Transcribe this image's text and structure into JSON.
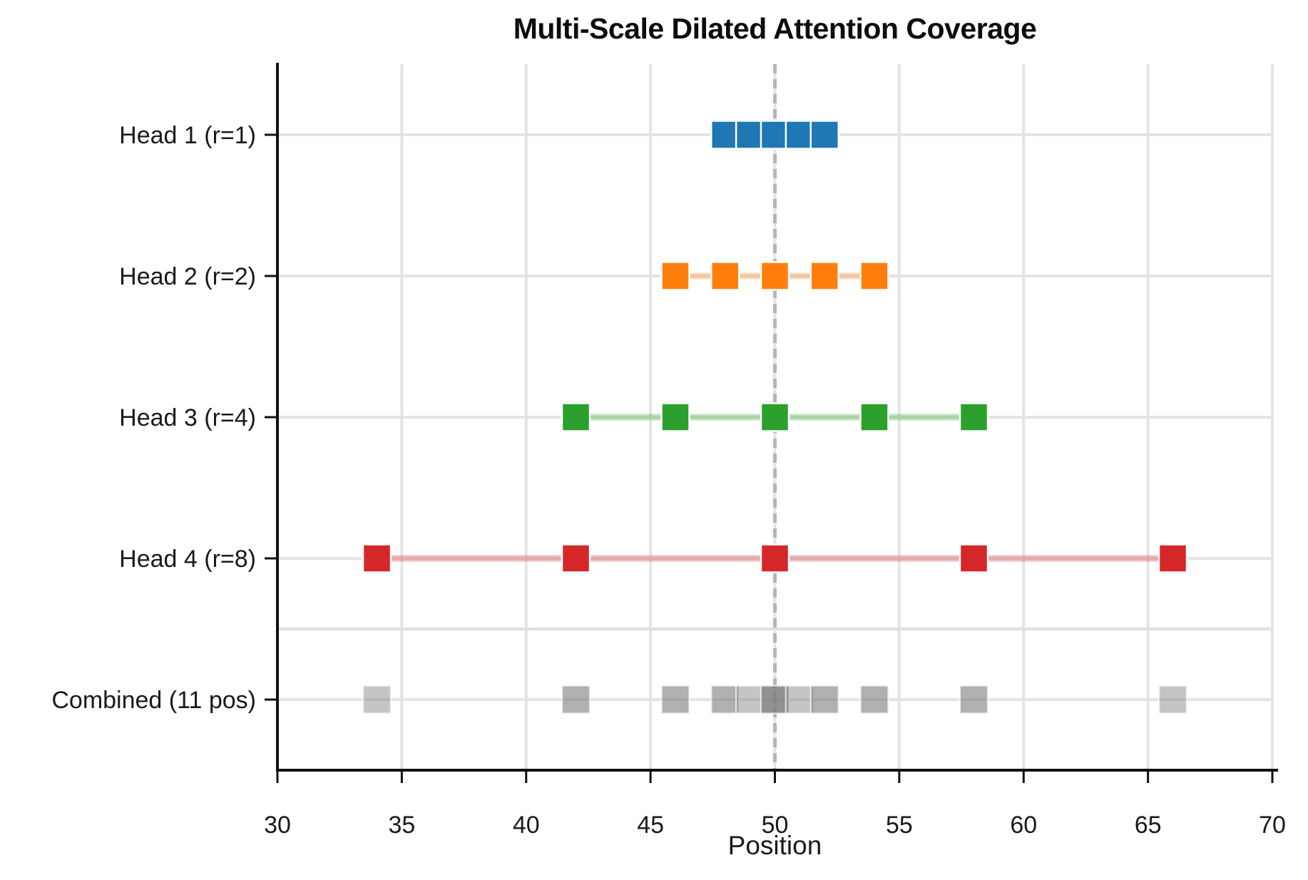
{
  "chart_data": {
    "type": "scatter",
    "title": "Multi-Scale Dilated Attention Coverage",
    "xlabel": "Position",
    "ylabel": "",
    "xlim": [
      30,
      70
    ],
    "xticks": [
      30,
      35,
      40,
      45,
      50,
      55,
      60,
      65,
      70
    ],
    "grid": true,
    "legend": null,
    "query_position": 50,
    "query_line_style": {
      "color": "#b5b5b5",
      "dash": "dashed"
    },
    "marker": "square",
    "separator_line_between": [
      "Head 4 (r=8)",
      "Combined (11 pos)"
    ],
    "rows": [
      {
        "label": "Head 1 (r=1)",
        "color": "#1f77b4",
        "positions": [
          48,
          49,
          50,
          51,
          52
        ],
        "connected": true
      },
      {
        "label": "Head 2 (r=2)",
        "color": "#ff7f0e",
        "positions": [
          46,
          48,
          50,
          52,
          54
        ],
        "connected": true
      },
      {
        "label": "Head 3 (r=4)",
        "color": "#2ca02c",
        "positions": [
          42,
          46,
          50,
          54,
          58
        ],
        "connected": true
      },
      {
        "label": "Head 4 (r=8)",
        "color": "#d62728",
        "positions": [
          34,
          42,
          50,
          58,
          66
        ],
        "connected": true
      },
      {
        "label": "Combined (11 pos)",
        "color": "#7f7f7f",
        "combined": true,
        "connected": false,
        "positions": [
          34,
          42,
          46,
          48,
          49,
          50,
          51,
          52,
          54,
          58,
          66
        ],
        "coverage_counts": [
          1,
          2,
          2,
          2,
          1,
          4,
          1,
          2,
          2,
          2,
          1
        ]
      }
    ],
    "shade_alpha_by_count": {
      "1": 0.45,
      "2": 0.62,
      "4": 0.85
    }
  }
}
